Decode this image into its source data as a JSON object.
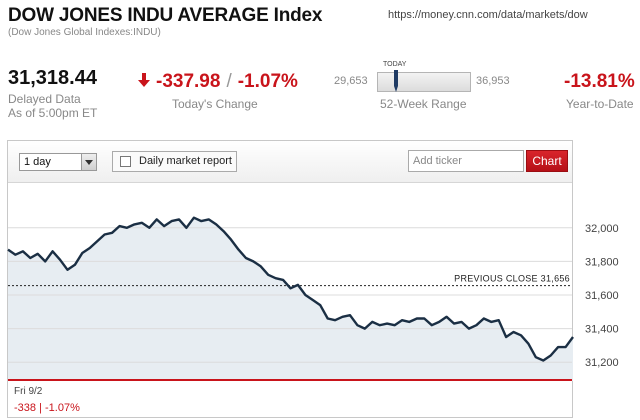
{
  "header": {
    "title": "DOW JONES INDU AVERAGE Index",
    "subtitle": "(Dow Jones Global Indexes:INDU)",
    "url": "https://money.cnn.com/data/markets/dow"
  },
  "quote": {
    "price": "31,318.44",
    "status": "Delayed Data",
    "as_of": "As of 5:00pm ET",
    "change_points": "-337.98",
    "change_percent": "-1.07%",
    "change_label": "Today's Change",
    "change_separator": "/",
    "week52_low": "29,653",
    "week52_high": "36,953",
    "week52_today_label": "TODAY",
    "week52_label": "52-Week Range",
    "week52_position": 0.12,
    "ytd": "-13.81%",
    "ytd_label": "Year-to-Date"
  },
  "toolbar": {
    "range_selected": "1 day",
    "report_label": "Daily market report",
    "ticker_placeholder": "Add ticker",
    "chart_button": "Chart"
  },
  "colors": {
    "negative": "#c9141b",
    "line": "#1b2f44",
    "fill": "#e7edf2"
  },
  "chart_data": {
    "type": "area",
    "title": "",
    "y_ticks": [
      31200,
      31400,
      31600,
      31800,
      32000
    ],
    "y_tick_labels": [
      "31,200",
      "31,400",
      "31,600",
      "31,800",
      "32,000"
    ],
    "ylim": [
      31100,
      32100
    ],
    "previous_close": 31656,
    "previous_close_label": "PREVIOUS CLOSE 31,656",
    "values": [
      31870,
      31840,
      31860,
      31820,
      31845,
      31800,
      31860,
      31810,
      31750,
      31780,
      31850,
      31880,
      31920,
      31960,
      31970,
      32010,
      32000,
      32020,
      32030,
      32000,
      32050,
      32010,
      32040,
      32050,
      32000,
      32060,
      32040,
      32050,
      32020,
      31980,
      31930,
      31870,
      31820,
      31800,
      31770,
      31720,
      31700,
      31690,
      31640,
      31660,
      31600,
      31570,
      31540,
      31460,
      31450,
      31470,
      31480,
      31420,
      31400,
      31440,
      31420,
      31430,
      31420,
      31450,
      31440,
      31460,
      31460,
      31420,
      31440,
      31470,
      31430,
      31440,
      31400,
      31420,
      31460,
      31440,
      31450,
      31350,
      31380,
      31360,
      31310,
      31230,
      31210,
      31240,
      31290,
      31290,
      31350
    ]
  },
  "footer": {
    "date": "Fri 9/2",
    "change_points": "-338",
    "separator": "|",
    "change_percent": "-1.07%"
  }
}
